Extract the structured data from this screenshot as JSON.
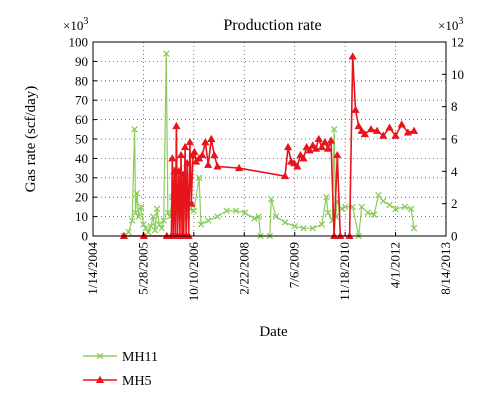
{
  "chart_data": {
    "type": "line",
    "title": "Production rate",
    "xlabel": "Date",
    "ylabel": "Gas rate (scf/day)",
    "y_multiplier_left": "×10",
    "y_multiplier_right": "×10",
    "y_multiplier_exp": "3",
    "x_range": [
      "2004-01-14",
      "2013-08-14"
    ],
    "x_ticks": [
      {
        "date": "2004-01-14",
        "label": "1/14/2004"
      },
      {
        "date": "2005-05-28",
        "label": "5/28/2005"
      },
      {
        "date": "2006-10-10",
        "label": "10/10/2006"
      },
      {
        "date": "2008-02-22",
        "label": "2/22/2008"
      },
      {
        "date": "2009-07-06",
        "label": "7/6/2009"
      },
      {
        "date": "2010-11-18",
        "label": "11/18/2010"
      },
      {
        "date": "2012-04-01",
        "label": "4/1/2012"
      },
      {
        "date": "2013-08-14",
        "label": "8/14/2013"
      }
    ],
    "ylim_left": [
      0,
      100
    ],
    "yticks_left": [
      0,
      10,
      20,
      30,
      40,
      50,
      60,
      70,
      80,
      90,
      100
    ],
    "ylim_right": [
      0,
      12
    ],
    "yticks_right": [
      0,
      2,
      4,
      6,
      8,
      10,
      12
    ],
    "grid": "dotted",
    "legend_placement": "bottom-left",
    "series": [
      {
        "name": "MH11",
        "axis": "left",
        "color": "#8ccc5a",
        "marker": "x",
        "points": [
          [
            "2004-11-15",
            0
          ],
          [
            "2005-01-01",
            2
          ],
          [
            "2005-02-05",
            8
          ],
          [
            "2005-03-01",
            55
          ],
          [
            "2005-03-10",
            12
          ],
          [
            "2005-03-25",
            22
          ],
          [
            "2005-04-10",
            10
          ],
          [
            "2005-05-05",
            15
          ],
          [
            "2005-05-28",
            6
          ],
          [
            "2005-06-20",
            4
          ],
          [
            "2005-07-15",
            2
          ],
          [
            "2005-08-10",
            5
          ],
          [
            "2005-09-01",
            10
          ],
          [
            "2005-09-20",
            3
          ],
          [
            "2005-10-10",
            14
          ],
          [
            "2005-11-01",
            6
          ],
          [
            "2005-11-25",
            4
          ],
          [
            "2005-12-15",
            8
          ],
          [
            "2006-01-10",
            94
          ],
          [
            "2006-01-25",
            12
          ],
          [
            "2006-02-15",
            10
          ],
          [
            "2006-03-10",
            20
          ],
          [
            "2006-04-01",
            35
          ],
          [
            "2006-04-20",
            12
          ],
          [
            "2006-05-15",
            25
          ],
          [
            "2006-06-10",
            10
          ],
          [
            "2006-07-01",
            12
          ],
          [
            "2006-08-01",
            10
          ],
          [
            "2006-09-01",
            14
          ],
          [
            "2006-10-10",
            13
          ],
          [
            "2006-12-01",
            30
          ],
          [
            "2006-12-20",
            6
          ],
          [
            "2007-03-01",
            8
          ],
          [
            "2007-06-01",
            10
          ],
          [
            "2007-09-01",
            13
          ],
          [
            "2007-12-01",
            13
          ],
          [
            "2008-03-01",
            12
          ],
          [
            "2008-06-01",
            9
          ],
          [
            "2008-07-15",
            10
          ],
          [
            "2008-08-01",
            0
          ],
          [
            "2008-11-01",
            0
          ],
          [
            "2008-11-15",
            19
          ],
          [
            "2009-01-01",
            10
          ],
          [
            "2009-04-01",
            7
          ],
          [
            "2009-07-06",
            5
          ],
          [
            "2009-10-01",
            4
          ],
          [
            "2010-01-01",
            4
          ],
          [
            "2010-04-01",
            6
          ],
          [
            "2010-05-15",
            20
          ],
          [
            "2010-06-01",
            12
          ],
          [
            "2010-07-15",
            8
          ],
          [
            "2010-08-01",
            55
          ],
          [
            "2010-08-15",
            10
          ],
          [
            "2010-09-01",
            18
          ],
          [
            "2010-10-15",
            14
          ],
          [
            "2010-11-18",
            15
          ],
          [
            "2011-02-01",
            15
          ],
          [
            "2011-04-01",
            0
          ],
          [
            "2011-05-01",
            15
          ],
          [
            "2011-07-01",
            12
          ],
          [
            "2011-09-01",
            11
          ],
          [
            "2011-10-15",
            21
          ],
          [
            "2011-12-01",
            18
          ],
          [
            "2012-02-01",
            16
          ],
          [
            "2012-04-01",
            14
          ],
          [
            "2012-07-01",
            15
          ],
          [
            "2012-09-01",
            14
          ],
          [
            "2012-10-01",
            4
          ]
        ]
      },
      {
        "name": "MH5",
        "axis": "right",
        "color": "#e8141c",
        "marker": "triangle",
        "points": [
          [
            "2004-11-15",
            0
          ],
          [
            "2005-06-01",
            0
          ],
          [
            "2006-01-15",
            0
          ],
          [
            "2006-03-01",
            0
          ],
          [
            "2006-03-10",
            4.8
          ],
          [
            "2006-03-20",
            0
          ],
          [
            "2006-04-01",
            4.0
          ],
          [
            "2006-04-10",
            0
          ],
          [
            "2006-04-20",
            6.8
          ],
          [
            "2006-05-01",
            0
          ],
          [
            "2006-05-15",
            4.0
          ],
          [
            "2006-05-25",
            0
          ],
          [
            "2006-06-05",
            5.0
          ],
          [
            "2006-06-15",
            0
          ],
          [
            "2006-06-25",
            3.8
          ],
          [
            "2006-07-01",
            0
          ],
          [
            "2006-07-15",
            5.5
          ],
          [
            "2006-07-25",
            0
          ],
          [
            "2006-08-05",
            4.5
          ],
          [
            "2006-08-20",
            0
          ],
          [
            "2006-09-01",
            5.8
          ],
          [
            "2006-09-15",
            2.0
          ],
          [
            "2006-10-01",
            5.0
          ],
          [
            "2006-10-15",
            5.2
          ],
          [
            "2006-11-01",
            4.6
          ],
          [
            "2006-12-01",
            4.8
          ],
          [
            "2007-01-01",
            5.0
          ],
          [
            "2007-02-01",
            5.8
          ],
          [
            "2007-03-01",
            4.4
          ],
          [
            "2007-04-01",
            6.0
          ],
          [
            "2007-05-01",
            5.0
          ],
          [
            "2007-06-01",
            4.3
          ],
          [
            "2008-01-01",
            4.2
          ],
          [
            "2009-04-01",
            3.7
          ],
          [
            "2009-05-01",
            5.5
          ],
          [
            "2009-06-01",
            4.6
          ],
          [
            "2009-07-01",
            4.5
          ],
          [
            "2009-08-01",
            4.3
          ],
          [
            "2009-09-01",
            5.0
          ],
          [
            "2009-10-01",
            4.8
          ],
          [
            "2009-11-01",
            5.5
          ],
          [
            "2009-12-01",
            5.3
          ],
          [
            "2010-01-01",
            5.6
          ],
          [
            "2010-02-01",
            5.4
          ],
          [
            "2010-03-01",
            6.0
          ],
          [
            "2010-04-01",
            5.5
          ],
          [
            "2010-05-01",
            5.8
          ],
          [
            "2010-06-01",
            5.4
          ],
          [
            "2010-07-01",
            5.9
          ],
          [
            "2010-08-01",
            0
          ],
          [
            "2010-09-01",
            5.0
          ],
          [
            "2010-10-01",
            0
          ],
          [
            "2011-01-01",
            0
          ],
          [
            "2011-02-01",
            11.1
          ],
          [
            "2011-03-01",
            7.8
          ],
          [
            "2011-04-01",
            6.8
          ],
          [
            "2011-05-01",
            6.5
          ],
          [
            "2011-06-01",
            6.3
          ],
          [
            "2011-08-01",
            6.6
          ],
          [
            "2011-10-01",
            6.5
          ],
          [
            "2011-12-01",
            6.2
          ],
          [
            "2012-02-01",
            6.7
          ],
          [
            "2012-04-01",
            6.2
          ],
          [
            "2012-06-01",
            6.9
          ],
          [
            "2012-08-01",
            6.4
          ],
          [
            "2012-10-01",
            6.5
          ]
        ]
      }
    ]
  }
}
